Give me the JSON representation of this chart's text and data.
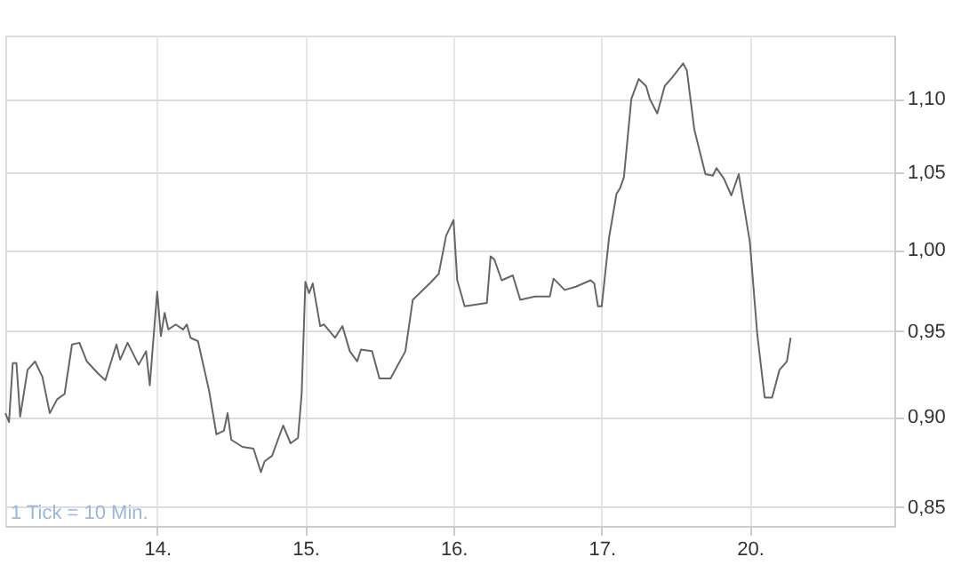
{
  "chart_data": {
    "type": "line",
    "categories": [
      null,
      null,
      null,
      null,
      null,
      null,
      null,
      null,
      null,
      null,
      null,
      null,
      null,
      null,
      null,
      null,
      null,
      null,
      null,
      null,
      null,
      null,
      null,
      null,
      null,
      null,
      null,
      null,
      null,
      null,
      null,
      null,
      null,
      null,
      null,
      null,
      null,
      null,
      null,
      null,
      null,
      "14.",
      null,
      null,
      null,
      null,
      null,
      null,
      null,
      null,
      null,
      null,
      null,
      null,
      null,
      null,
      null,
      null,
      null,
      null,
      null,
      null,
      null,
      null,
      null,
      null,
      null,
      null,
      null,
      null,
      null,
      null,
      null,
      null,
      null,
      null,
      null,
      null,
      null,
      null,
      null,
      "15.",
      null,
      null,
      null,
      null,
      null,
      null,
      null,
      null,
      null,
      null,
      null,
      null,
      null,
      null,
      null,
      null,
      null,
      null,
      null,
      null,
      null,
      null,
      null,
      null,
      null,
      null,
      null,
      null,
      null,
      null,
      null,
      null,
      null,
      null,
      null,
      null,
      null,
      null,
      null,
      "16.",
      null,
      null,
      null,
      null,
      null,
      null,
      null,
      null,
      null,
      null,
      null,
      null,
      null,
      null,
      null,
      null,
      null,
      null,
      null,
      null,
      null,
      null,
      null,
      null,
      null,
      null,
      null,
      null,
      null,
      null,
      null,
      null,
      null,
      null,
      null,
      null,
      null,
      null,
      null,
      "17.",
      null,
      null,
      null,
      null,
      null,
      null,
      null,
      null,
      null,
      null,
      null,
      null,
      null,
      null,
      null,
      null,
      null,
      null,
      null,
      null,
      null,
      null,
      null,
      null,
      null,
      null,
      null,
      null,
      null,
      null,
      null,
      null,
      null,
      null,
      null,
      null,
      null,
      null,
      null,
      "20.",
      null,
      null,
      null,
      null,
      null,
      null,
      null,
      null,
      null,
      null,
      null,
      null,
      null,
      null,
      null,
      null,
      null,
      null,
      null,
      null,
      null,
      null,
      null,
      null,
      null,
      null,
      null,
      null,
      null,
      null,
      null,
      null,
      null,
      null,
      null,
      null,
      null,
      null,
      null
    ],
    "series": [
      {
        "color": "#666666",
        "values": [
          0.902,
          0.897,
          0.931,
          0.931,
          0.9,
          null,
          0.927,
          null,
          0.932,
          null,
          0.923,
          null,
          0.902,
          null,
          0.91,
          null,
          0.913,
          null,
          0.942,
          null,
          0.943,
          null,
          0.932,
          null,
          null,
          0.925,
          null,
          0.921,
          null,
          null,
          0.942,
          0.933,
          null,
          0.943,
          null,
          null,
          0.93,
          null,
          0.938,
          0.918,
          0.946,
          0.974,
          0.947,
          0.961,
          0.951,
          null,
          0.954,
          null,
          0.951,
          0.954,
          0.946,
          null,
          0.944,
          null,
          null,
          0.915,
          null,
          0.89,
          null,
          0.892,
          0.902,
          0.887,
          null,
          null,
          0.883,
          null,
          null,
          0.882,
          null,
          0.869,
          0.875,
          null,
          0.878,
          null,
          null,
          0.895,
          null,
          0.885,
          null,
          0.888,
          0.913,
          0.98,
          0.973,
          0.979,
          null,
          0.953,
          0.954,
          null,
          null,
          0.946,
          null,
          0.953,
          null,
          0.938,
          null,
          0.932,
          0.939,
          null,
          null,
          0.938,
          null,
          0.922,
          null,
          null,
          0.922,
          null,
          null,
          null,
          0.938,
          null,
          0.969,
          null,
          null,
          null,
          null,
          0.98,
          null,
          0.985,
          null,
          1.009,
          null,
          1.019,
          0.981,
          null,
          0.965,
          null,
          null,
          null,
          null,
          null,
          0.967,
          0.996,
          0.994,
          null,
          0.981,
          null,
          null,
          0.984,
          null,
          0.969,
          null,
          null,
          null,
          0.971,
          null,
          null,
          null,
          0.971,
          0.982,
          null,
          null,
          0.975,
          null,
          null,
          0.977,
          null,
          null,
          null,
          0.981,
          0.979,
          0.965,
          0.965,
          null,
          1.008,
          null,
          1.036,
          1.04,
          1.047,
          null,
          1.1,
          null,
          1.114,
          null,
          1.109,
          1.1,
          null,
          1.09,
          null,
          1.109,
          null,
          1.115,
          null,
          null,
          1.125,
          1.12,
          null,
          1.079,
          null,
          null,
          1.049,
          null,
          1.048,
          1.053,
          null,
          1.046,
          null,
          1.035,
          null,
          1.049,
          null,
          null,
          1.005,
          null,
          0.948,
          null,
          0.911,
          null,
          0.911,
          null,
          0.927,
          null,
          0.932,
          0.946,
          null,
          null,
          null,
          null,
          null,
          null,
          null,
          null,
          null,
          null,
          null,
          null,
          null,
          null,
          null,
          null,
          null,
          null,
          null,
          null,
          null,
          null,
          null,
          null,
          null,
          null,
          null,
          null
        ]
      }
    ],
    "ylim": [
      0.84,
      1.145
    ],
    "yticks": [
      {
        "value": 0.85,
        "label": "0,85"
      },
      {
        "value": 0.9,
        "label": "0,90"
      },
      {
        "value": 0.95,
        "label": "0,95"
      },
      {
        "value": 1.0,
        "label": "1,00"
      },
      {
        "value": 1.05,
        "label": "1,05"
      },
      {
        "value": 1.1,
        "label": "1,10"
      }
    ],
    "log": true,
    "grid": true,
    "marker": "none",
    "line_style": "solid",
    "annotations": [
      "1 Tick = 10 Min."
    ]
  }
}
